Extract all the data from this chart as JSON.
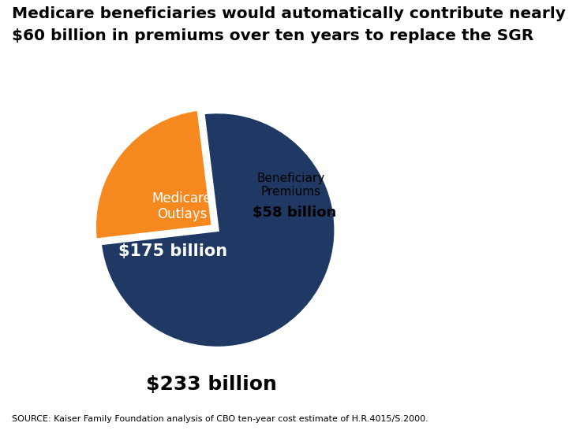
{
  "title_line1": "Medicare beneficiaries would automatically contribute nearly",
  "title_line2": "$60 billion in premiums over ten years to replace the SGR",
  "slices": [
    175,
    58
  ],
  "colors": [
    "#1f3864",
    "#f5891f"
  ],
  "label_medicare": "Medicare\nOutlays",
  "label_beneficiary": "Beneficiary\nPremiums",
  "value_medicare": "$175 billion",
  "value_beneficiary": "$58 billion",
  "total_text": "$233 billion",
  "source_text": "SOURCE: Kaiser Family Foundation analysis of CBO ten-year cost estimate of H.R.4015/S.2000.",
  "explode": [
    0,
    0.05
  ],
  "startangle": 97,
  "background_color": "#ffffff"
}
